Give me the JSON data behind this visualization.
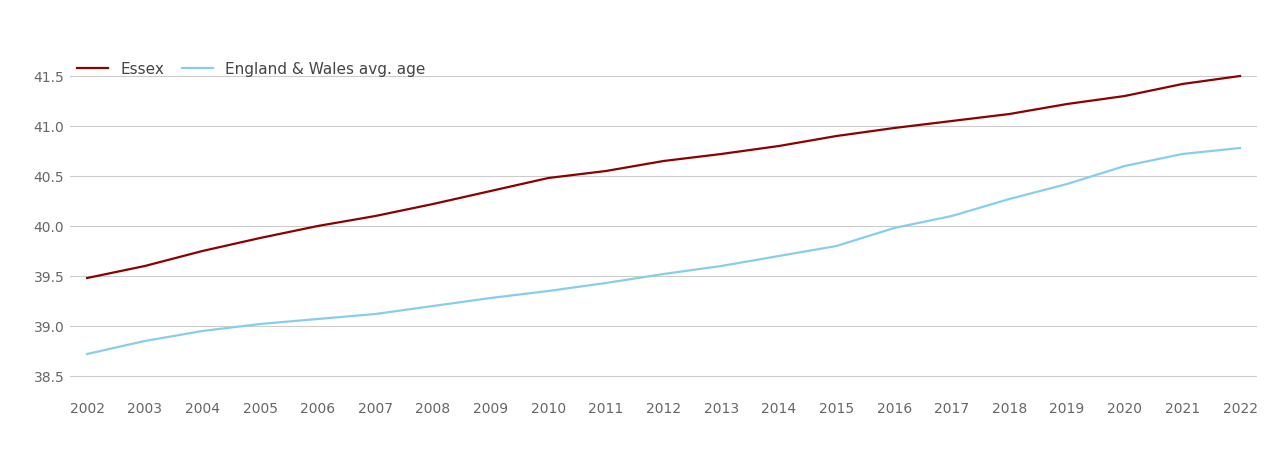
{
  "years": [
    2002,
    2003,
    2004,
    2005,
    2006,
    2007,
    2008,
    2009,
    2010,
    2011,
    2012,
    2013,
    2014,
    2015,
    2016,
    2017,
    2018,
    2019,
    2020,
    2021,
    2022
  ],
  "essex": [
    39.48,
    39.6,
    39.75,
    39.88,
    40.0,
    40.1,
    40.22,
    40.35,
    40.48,
    40.55,
    40.65,
    40.72,
    40.8,
    40.9,
    40.98,
    41.05,
    41.12,
    41.22,
    41.3,
    41.42,
    41.5
  ],
  "england_wales": [
    38.72,
    38.85,
    38.95,
    39.02,
    39.07,
    39.12,
    39.2,
    39.28,
    39.35,
    39.43,
    39.52,
    39.6,
    39.7,
    39.8,
    39.98,
    40.1,
    40.27,
    40.42,
    40.6,
    40.72,
    40.78
  ],
  "essex_color": "#8B0000",
  "ew_color": "#87CEEB",
  "essex_label": "Essex",
  "ew_label": "England & Wales avg. age",
  "ylim_min": 38.3,
  "ylim_max": 41.72,
  "yticks": [
    38.5,
    39.0,
    39.5,
    40.0,
    40.5,
    41.0,
    41.5
  ],
  "line_width": 1.6,
  "background_color": "#ffffff",
  "grid_color": "#cccccc",
  "legend_fontsize": 11,
  "tick_fontsize": 10
}
